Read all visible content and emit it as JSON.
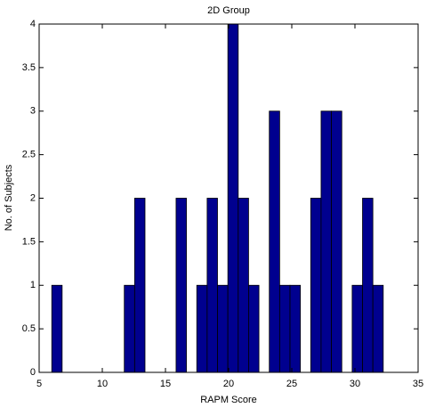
{
  "chart_data": {
    "type": "histogram",
    "title": "2D Group",
    "x_label": "RAPM Score",
    "y_label": "No. of Subjects",
    "bins": [
      6,
      6.82,
      7.64,
      8.46,
      9.28,
      10.1,
      10.92,
      11.74,
      12.56,
      13.38,
      14.2,
      15.02,
      15.84,
      16.66,
      17.48,
      18.3,
      19.12,
      19.94,
      20.76,
      21.58,
      22.4,
      23.22,
      24.04,
      24.86,
      25.68,
      26.5,
      27.32,
      28.14,
      28.96,
      29.78,
      30.6,
      31.42,
      32.24
    ],
    "values": [
      1,
      0,
      0,
      0,
      0,
      0,
      0,
      1,
      2,
      0,
      0,
      0,
      2,
      0,
      1,
      2,
      1,
      4,
      2,
      1,
      0,
      3,
      1,
      1,
      0,
      2,
      3,
      3,
      0,
      1,
      2,
      1
    ],
    "color": "#00008f",
    "xlim": [
      5,
      35
    ],
    "xticks": [
      5,
      10,
      15,
      20,
      25,
      30,
      35
    ],
    "ylim": [
      0,
      4
    ],
    "yticks": [
      0,
      0.5,
      1,
      1.5,
      2,
      2.5,
      3,
      3.5,
      4
    ]
  }
}
